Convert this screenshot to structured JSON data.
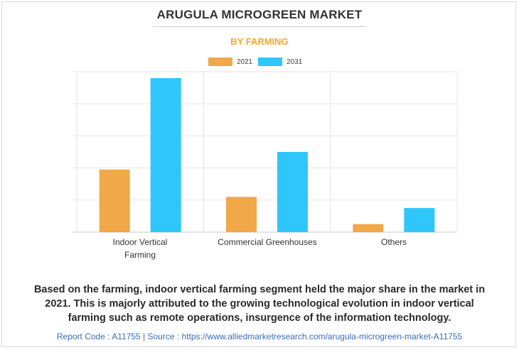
{
  "chart_data": {
    "type": "bar",
    "title": "ARUGULA MICROGREEN MARKET",
    "subtitle": "BY FARMING",
    "categories": [
      [
        "Indoor Vertical",
        "Farming"
      ],
      [
        "Commercial Greenhouses"
      ],
      [
        "Others"
      ]
    ],
    "series": [
      {
        "name": "2021",
        "values": [
          39,
          22,
          5
        ],
        "color": "#f0a848"
      },
      {
        "name": "2031",
        "values": [
          96,
          50,
          15
        ],
        "color": "#2ec6fb"
      }
    ],
    "ylim": [
      0,
      100
    ],
    "grid": true,
    "legend_position": "top-center",
    "y_tick_labels": false
  },
  "colors": {
    "subtitle": "#f0a82e",
    "footer": "#3a6eb5"
  },
  "caption": [
    "Based on the farming, indoor vertical farming segment held the major share in the market in",
    "2021. This is majorly attributed to the growing technological evolution in indoor vertical",
    "farming such as remote operations, insurgence of the information technology."
  ],
  "footer": "Report Code : A11755  |  Source : https://www.alliedmarketresearch.com/arugula-microgreen-market-A11755"
}
